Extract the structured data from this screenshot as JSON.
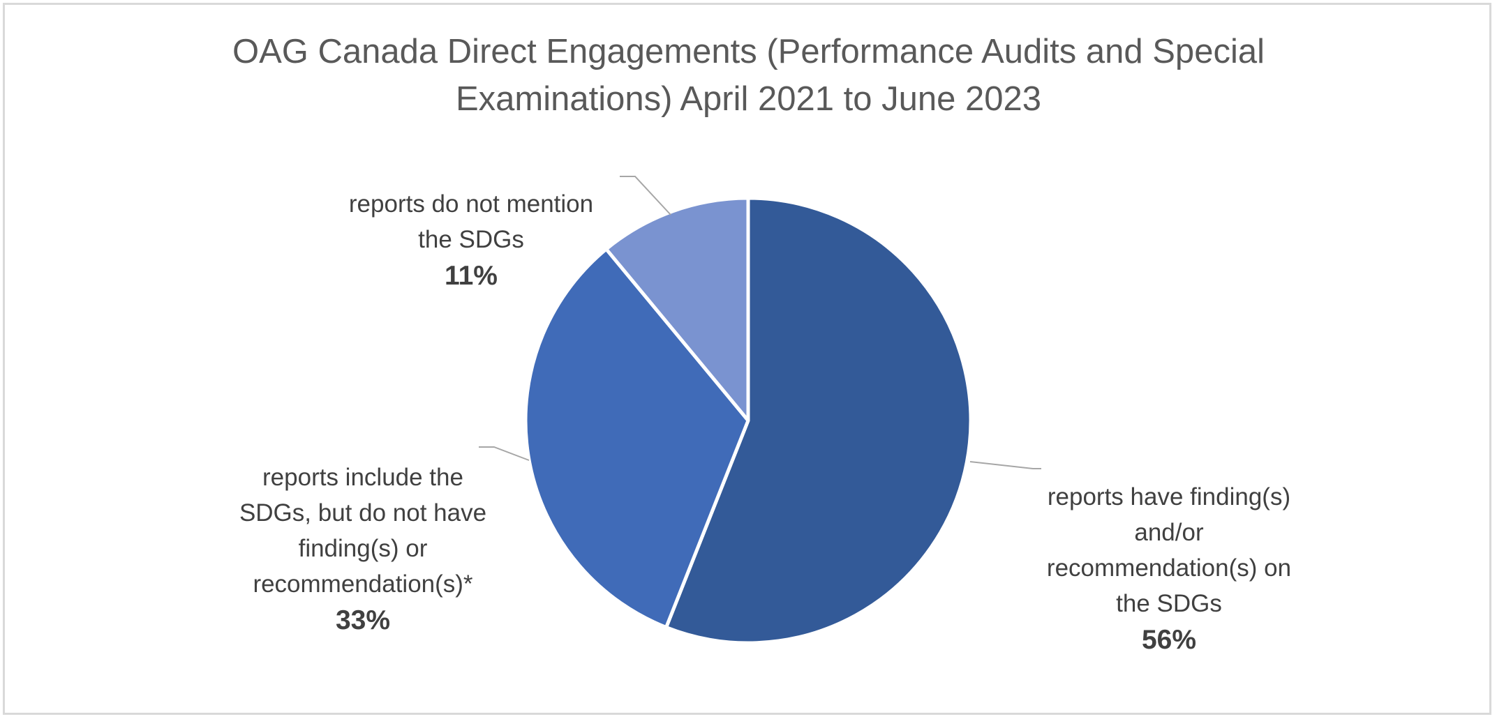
{
  "chart_data": {
    "type": "pie",
    "title_lines": [
      "OAG Canada Direct Engagements (Performance Audits and Special",
      "Examinations)  April 2021 to June 2023"
    ],
    "slices": [
      {
        "label": "reports have finding(s) and/or recommendation(s) on the SDGs",
        "label_lines": "reports have finding(s)\nand/or\nrecommendation(s) on\nthe SDGs",
        "value": 56,
        "value_label": "56%",
        "color": "#335a98"
      },
      {
        "label": "reports include the SDGs, but do not have finding(s) or recommendation(s)*",
        "label_lines": "reports include the\nSDGs, but do not have\nfinding(s) or\nrecommendation(s)*",
        "value": 33,
        "value_label": "33%",
        "color": "#406bb8"
      },
      {
        "label": "reports do not mention the SDGs",
        "label_lines": "reports do not mention\nthe SDGs",
        "value": 11,
        "value_label": "11%",
        "color": "#7a93d0"
      }
    ],
    "start_angle": "12 o'clock",
    "direction": "clockwise",
    "legend": "none",
    "label_style": "leader lines"
  }
}
